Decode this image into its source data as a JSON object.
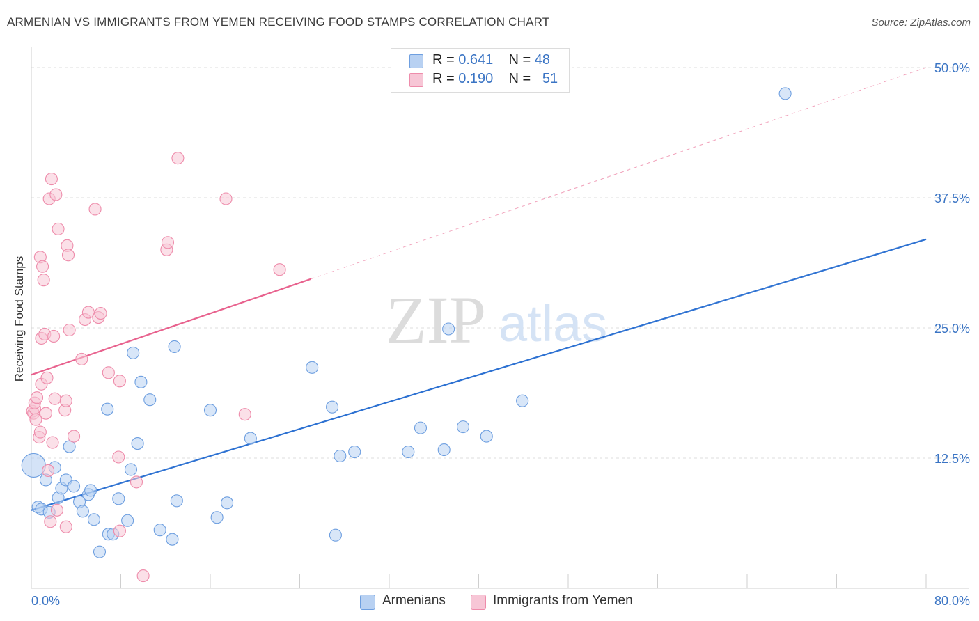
{
  "chart_data": {
    "type": "scatter",
    "title": "ARMENIAN VS IMMIGRANTS FROM YEMEN RECEIVING FOOD STAMPS CORRELATION CHART",
    "source": "Source: ZipAtlas.com",
    "watermark_zip": "ZIP",
    "watermark_atlas": "atlas",
    "ylabel": "Receiving Food Stamps",
    "xlim": [
      0,
      80
    ],
    "ylim": [
      0,
      50
    ],
    "x_tick_labels": [
      "0.0%",
      "80.0%"
    ],
    "y_ticks": [
      12.5,
      25.0,
      37.5,
      50.0
    ],
    "y_tick_labels": [
      "12.5%",
      "25.0%",
      "37.5%",
      "50.0%"
    ],
    "legend": [
      {
        "r_label": "R =",
        "r_value": "0.641",
        "n_label": "N =",
        "n_value": "48"
      },
      {
        "r_label": "R =",
        "r_value": "0.190",
        "n_label": "N =",
        "n_value": "51"
      }
    ],
    "series": [
      {
        "name": "Armenians",
        "color": "#6e9fe0",
        "fill": "#b8d1f2",
        "line_color": "#2e72d2",
        "trend": {
          "x0": 0,
          "y0": 7.5,
          "x1": 80,
          "y1": 33.5
        },
        "points": [
          [
            0.2,
            11.8
          ],
          [
            0.6,
            7.8
          ],
          [
            0.9,
            7.6
          ],
          [
            1.6,
            7.3
          ],
          [
            1.3,
            10.4
          ],
          [
            2.1,
            11.6
          ],
          [
            2.4,
            8.7
          ],
          [
            2.7,
            9.6
          ],
          [
            3.1,
            10.4
          ],
          [
            3.4,
            13.6
          ],
          [
            3.8,
            9.8
          ],
          [
            4.3,
            8.3
          ],
          [
            4.6,
            7.4
          ],
          [
            5.1,
            9.0
          ],
          [
            5.3,
            9.4
          ],
          [
            5.6,
            6.6
          ],
          [
            6.1,
            3.5
          ],
          [
            6.8,
            17.2
          ],
          [
            6.9,
            5.2
          ],
          [
            7.3,
            5.2
          ],
          [
            7.8,
            8.6
          ],
          [
            8.6,
            6.5
          ],
          [
            8.9,
            11.4
          ],
          [
            9.1,
            22.6
          ],
          [
            9.5,
            13.9
          ],
          [
            9.8,
            19.8
          ],
          [
            10.6,
            18.1
          ],
          [
            11.5,
            5.6
          ],
          [
            12.6,
            4.7
          ],
          [
            12.8,
            23.2
          ],
          [
            13.0,
            8.4
          ],
          [
            16.0,
            17.1
          ],
          [
            16.6,
            6.8
          ],
          [
            17.5,
            8.2
          ],
          [
            19.6,
            14.4
          ],
          [
            25.1,
            21.2
          ],
          [
            26.9,
            17.4
          ],
          [
            27.2,
            5.1
          ],
          [
            27.6,
            12.7
          ],
          [
            28.9,
            13.1
          ],
          [
            33.7,
            13.1
          ],
          [
            34.8,
            15.4
          ],
          [
            36.9,
            13.3
          ],
          [
            37.3,
            24.9
          ],
          [
            38.6,
            15.5
          ],
          [
            40.7,
            14.6
          ],
          [
            43.9,
            18.0
          ],
          [
            67.4,
            47.5
          ]
        ]
      },
      {
        "name": "Immigrants from Yemen",
        "color": "#ee8cab",
        "fill": "#f7c6d6",
        "line_color": "#e8628e",
        "trend": {
          "x0": 0,
          "y0": 20.5,
          "x1": 25,
          "y1": 29.7
        },
        "dash": {
          "x0": 25,
          "y0": 29.7,
          "x1": 80,
          "y1": 50
        },
        "points": [
          [
            0.1,
            17.0
          ],
          [
            0.2,
            16.8
          ],
          [
            0.3,
            17.3
          ],
          [
            0.3,
            17.8
          ],
          [
            0.4,
            16.2
          ],
          [
            0.5,
            18.3
          ],
          [
            0.7,
            14.5
          ],
          [
            0.8,
            15.0
          ],
          [
            0.8,
            31.8
          ],
          [
            0.9,
            24.0
          ],
          [
            0.9,
            19.6
          ],
          [
            1.0,
            30.9
          ],
          [
            1.1,
            29.6
          ],
          [
            1.2,
            24.4
          ],
          [
            1.3,
            16.8
          ],
          [
            1.4,
            20.2
          ],
          [
            1.5,
            11.3
          ],
          [
            1.6,
            37.4
          ],
          [
            1.7,
            6.4
          ],
          [
            1.8,
            39.3
          ],
          [
            1.9,
            14.0
          ],
          [
            2.0,
            24.2
          ],
          [
            2.1,
            18.2
          ],
          [
            2.2,
            37.8
          ],
          [
            2.3,
            7.5
          ],
          [
            2.4,
            34.5
          ],
          [
            3.0,
            17.1
          ],
          [
            3.1,
            18.0
          ],
          [
            3.1,
            5.9
          ],
          [
            3.2,
            32.9
          ],
          [
            3.3,
            32.0
          ],
          [
            3.4,
            24.8
          ],
          [
            3.8,
            14.6
          ],
          [
            4.5,
            22.0
          ],
          [
            4.8,
            25.8
          ],
          [
            5.1,
            26.5
          ],
          [
            5.7,
            36.4
          ],
          [
            6.0,
            26.0
          ],
          [
            6.2,
            26.4
          ],
          [
            6.9,
            20.7
          ],
          [
            7.8,
            12.6
          ],
          [
            7.9,
            5.5
          ],
          [
            7.9,
            19.9
          ],
          [
            9.4,
            10.2
          ],
          [
            10.0,
            1.2
          ],
          [
            12.1,
            32.5
          ],
          [
            12.2,
            33.2
          ],
          [
            13.1,
            41.3
          ],
          [
            17.4,
            37.4
          ],
          [
            19.1,
            16.7
          ],
          [
            22.2,
            30.6
          ]
        ]
      }
    ]
  }
}
